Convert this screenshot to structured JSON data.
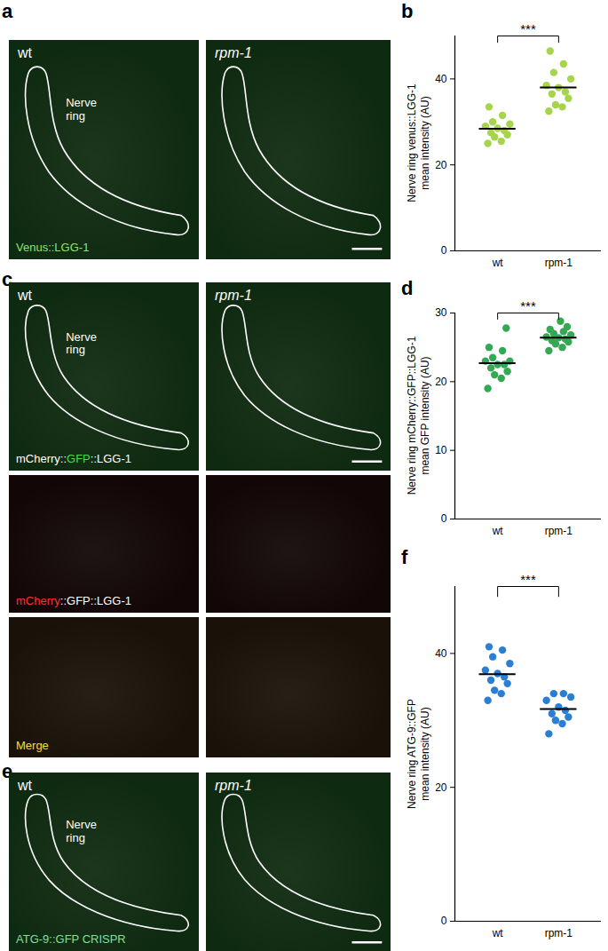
{
  "chart_data": [
    {
      "panel": "b",
      "type": "scatter",
      "categories": [
        "wt",
        "rpm-1"
      ],
      "values": [
        [
          25.0,
          25.5,
          26.5,
          27.0,
          27.5,
          28.0,
          28.5,
          29.0,
          29.5,
          30.0,
          31.5,
          33.5
        ],
        [
          32.5,
          33.5,
          34.0,
          35.5,
          36.5,
          37.0,
          38.0,
          38.5,
          40.0,
          41.5,
          43.5,
          46.5
        ]
      ],
      "mean_values": [
        28.4,
        38.0
      ],
      "color": "#a6d54b",
      "ylabel": "Nerve ring venus::LGG-1\nmean intensity (AU)",
      "ylim": [
        0,
        50
      ],
      "yticks": [
        0,
        20,
        40
      ],
      "annotation": "***"
    },
    {
      "panel": "d",
      "type": "scatter",
      "categories": [
        "wt",
        "rpm-1"
      ],
      "values": [
        [
          19.0,
          20.5,
          21.0,
          21.5,
          22.0,
          22.5,
          22.5,
          23.0,
          23.0,
          23.5,
          24.5,
          25.0,
          27.8
        ],
        [
          24.5,
          25.0,
          25.5,
          25.8,
          26.0,
          26.2,
          26.4,
          26.5,
          26.8,
          27.0,
          27.3,
          27.6,
          28.0,
          28.8
        ]
      ],
      "mean_values": [
        22.7,
        26.4
      ],
      "color": "#35a853",
      "ylabel": "Nerve ring mCherry::GFP::LGG-1\nmean GFP intensity (AU)",
      "ylim": [
        0,
        30
      ],
      "yticks": [
        0,
        10,
        20,
        30
      ],
      "annotation": "***"
    },
    {
      "panel": "f",
      "type": "scatter",
      "categories": [
        "wt",
        "rpm-1"
      ],
      "values": [
        [
          33.0,
          34.0,
          34.5,
          35.5,
          36.0,
          36.5,
          37.0,
          37.5,
          38.5,
          39.5,
          40.5,
          41.0
        ],
        [
          28.0,
          29.5,
          30.0,
          30.5,
          31.0,
          31.5,
          32.0,
          33.0,
          33.5,
          34.0,
          34.0
        ]
      ],
      "mean_values": [
        36.9,
        31.7
      ],
      "color": "#2a7fd4",
      "ylabel": "Nerve ring ATG-9::GFP\nmean intensity (AU)",
      "ylim": [
        0,
        50
      ],
      "yticks": [
        0,
        20,
        40
      ],
      "annotation": "***"
    }
  ],
  "image_panels": [
    {
      "panel": "a",
      "rows": [
        [
          {
            "label": "wt",
            "region": "Nerve\nring",
            "color": "#0e2a10",
            "channel": [
              {
                "text": "Venus::LGG-1",
                "color": "#8fe36a"
              }
            ]
          },
          {
            "label": "rpm-1",
            "color": "#0e2a10"
          }
        ]
      ]
    },
    {
      "panel": "c",
      "rows": [
        [
          {
            "label": "wt",
            "region": "Nerve\nring",
            "color": "#0e2a10",
            "channel": [
              {
                "text": "mCherry::",
                "color": "#ffffff"
              },
              {
                "text": "GFP",
                "color": "#4cd84c"
              },
              {
                "text": "::LGG-1",
                "color": "#ffffff"
              }
            ]
          },
          {
            "label": "rpm-1",
            "color": "#0e2a10"
          }
        ],
        [
          {
            "color": "#120606",
            "channel": [
              {
                "text": "mCherry",
                "color": "#ff3030"
              },
              {
                "text": "::GFP::LGG-1",
                "color": "#ffffff"
              }
            ]
          },
          {
            "color": "#120606"
          }
        ],
        [
          {
            "color": "#1a1208",
            "channel": [
              {
                "text": "Merge",
                "color": "#f2e030"
              }
            ]
          },
          {
            "color": "#1a1208"
          }
        ]
      ]
    },
    {
      "panel": "e",
      "rows": [
        [
          {
            "label": "wt",
            "region": "Nerve\nring",
            "color": "#0e2a10",
            "channel": [
              {
                "text": "ATG-9::GFP  CRISPR",
                "color": "#7be09a"
              }
            ]
          },
          {
            "label": "rpm-1",
            "color": "#0e2a10"
          }
        ]
      ]
    }
  ]
}
